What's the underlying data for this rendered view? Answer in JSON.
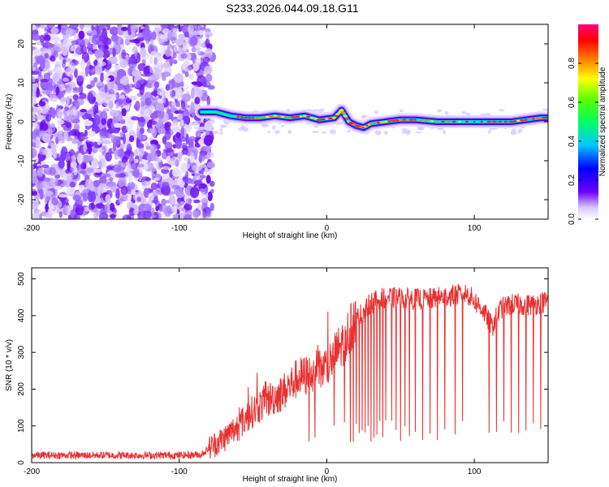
{
  "title": "S233.2026.044.09.18.G11",
  "chart_data": [
    {
      "type": "heatmap",
      "name": "spectrogram",
      "xlabel": "Height of straight line (km)",
      "ylabel": "Frequency (Hz)",
      "xlim": [
        -200,
        150
      ],
      "ylim": [
        -25,
        25
      ],
      "xticks": [
        -200,
        -100,
        0,
        100
      ],
      "xtick_labels": [
        "-200",
        "-100",
        "0",
        "100"
      ],
      "yticks": [
        -20,
        -10,
        0,
        10,
        20
      ],
      "ytick_labels": [
        "-20",
        "-10",
        "0",
        "10",
        "20"
      ],
      "noise_region_x": [
        -200,
        -82
      ],
      "ridge": [
        {
          "x": -85,
          "f": 2.5
        },
        {
          "x": -75,
          "f": 2.5
        },
        {
          "x": -65,
          "f": 1.5
        },
        {
          "x": -55,
          "f": 1.0
        },
        {
          "x": -45,
          "f": 1.0
        },
        {
          "x": -35,
          "f": 1.5
        },
        {
          "x": -25,
          "f": 1.0
        },
        {
          "x": -15,
          "f": 1.5
        },
        {
          "x": -5,
          "f": 0.5
        },
        {
          "x": 5,
          "f": 1.0
        },
        {
          "x": 10,
          "f": 3.0
        },
        {
          "x": 15,
          "f": 0.0
        },
        {
          "x": 20,
          "f": -1.0
        },
        {
          "x": 25,
          "f": -1.5
        },
        {
          "x": 30,
          "f": -0.5
        },
        {
          "x": 40,
          "f": 0.0
        },
        {
          "x": 50,
          "f": 0.5
        },
        {
          "x": 60,
          "f": 0.5
        },
        {
          "x": 75,
          "f": 0.0
        },
        {
          "x": 90,
          "f": 0.0
        },
        {
          "x": 110,
          "f": 0.0
        },
        {
          "x": 125,
          "f": 0.0
        },
        {
          "x": 135,
          "f": 0.5
        },
        {
          "x": 145,
          "f": 1.0
        },
        {
          "x": 150,
          "f": 1.0
        }
      ],
      "colorbar": {
        "label": "Normalized spectral amplitude",
        "range": [
          0.0,
          1.0
        ],
        "ticks": [
          0.0,
          0.2,
          0.4,
          0.6,
          0.8
        ],
        "tick_labels": [
          "0.0",
          "0.2",
          "0.4",
          "0.6",
          "0.8"
        ],
        "colors": [
          "#ffffff",
          "#6a00ff",
          "#0000ff",
          "#00ffff",
          "#00ff00",
          "#ffff00",
          "#ff8000",
          "#ff0000",
          "#ff00aa"
        ]
      }
    },
    {
      "type": "line",
      "name": "snr",
      "xlabel": "Height of straight line (km)",
      "ylabel": "SNR (10 * v/v)",
      "xlim": [
        -200,
        150
      ],
      "ylim": [
        0,
        530
      ],
      "xticks": [
        -200,
        -100,
        0,
        100
      ],
      "xtick_labels": [
        "-200",
        "-100",
        "0",
        "100"
      ],
      "yticks": [
        0,
        100,
        200,
        300,
        400,
        500
      ],
      "ytick_labels": [
        "0",
        "100",
        "200",
        "300",
        "400",
        "500"
      ],
      "color": "#e83030",
      "envelope": [
        {
          "x": -200,
          "y": 20
        },
        {
          "x": -150,
          "y": 20
        },
        {
          "x": -100,
          "y": 20
        },
        {
          "x": -85,
          "y": 22
        },
        {
          "x": -78,
          "y": 45
        },
        {
          "x": -70,
          "y": 65
        },
        {
          "x": -60,
          "y": 100
        },
        {
          "x": -50,
          "y": 140
        },
        {
          "x": -40,
          "y": 170
        },
        {
          "x": -30,
          "y": 190
        },
        {
          "x": -20,
          "y": 230
        },
        {
          "x": -10,
          "y": 240
        },
        {
          "x": 0,
          "y": 260
        },
        {
          "x": 10,
          "y": 320
        },
        {
          "x": 20,
          "y": 390
        },
        {
          "x": 30,
          "y": 435
        },
        {
          "x": 40,
          "y": 450
        },
        {
          "x": 55,
          "y": 445
        },
        {
          "x": 70,
          "y": 445
        },
        {
          "x": 85,
          "y": 455
        },
        {
          "x": 95,
          "y": 460
        },
        {
          "x": 105,
          "y": 420
        },
        {
          "x": 112,
          "y": 370
        },
        {
          "x": 118,
          "y": 420
        },
        {
          "x": 125,
          "y": 430
        },
        {
          "x": 140,
          "y": 430
        },
        {
          "x": 150,
          "y": 440
        }
      ],
      "dropouts_x": [
        -12,
        -8,
        5,
        12,
        16,
        18,
        20,
        22,
        24,
        26,
        28,
        30,
        32,
        34,
        36,
        38,
        40,
        44,
        47,
        50,
        53,
        56,
        60,
        65,
        70,
        75,
        80,
        87,
        92,
        110,
        115,
        120,
        125,
        130,
        135,
        140,
        145
      ]
    }
  ]
}
